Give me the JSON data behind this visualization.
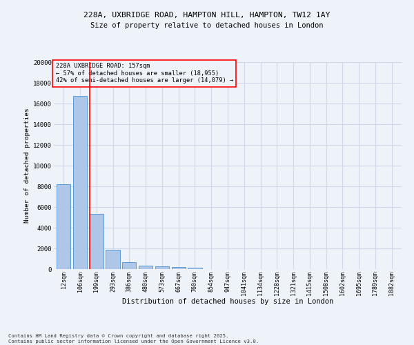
{
  "title1": "228A, UXBRIDGE ROAD, HAMPTON HILL, HAMPTON, TW12 1AY",
  "title2": "Size of property relative to detached houses in London",
  "xlabel": "Distribution of detached houses by size in London",
  "ylabel": "Number of detached properties",
  "bar_labels": [
    "12sqm",
    "106sqm",
    "199sqm",
    "293sqm",
    "386sqm",
    "480sqm",
    "573sqm",
    "667sqm",
    "760sqm",
    "854sqm",
    "947sqm",
    "1041sqm",
    "1134sqm",
    "1228sqm",
    "1321sqm",
    "1415sqm",
    "1508sqm",
    "1602sqm",
    "1695sqm",
    "1789sqm",
    "1882sqm"
  ],
  "bar_values": [
    8200,
    16700,
    5350,
    1850,
    650,
    330,
    260,
    190,
    130,
    0,
    0,
    0,
    0,
    0,
    0,
    0,
    0,
    0,
    0,
    0,
    0
  ],
  "bar_color": "#aec6e8",
  "bar_edgecolor": "#5b9bd5",
  "grid_color": "#d0d8e8",
  "vline_x": 1.6,
  "vline_color": "red",
  "annotation_text": "228A UXBRIDGE ROAD: 157sqm\n← 57% of detached houses are smaller (18,955)\n42% of semi-detached houses are larger (14,079) →",
  "annotation_box_color": "red",
  "ylim": [
    0,
    20000
  ],
  "yticks": [
    0,
    2000,
    4000,
    6000,
    8000,
    10000,
    12000,
    14000,
    16000,
    18000,
    20000
  ],
  "footnote": "Contains HM Land Registry data © Crown copyright and database right 2025.\nContains public sector information licensed under the Open Government Licence v3.0.",
  "bg_color": "#eef2f9"
}
